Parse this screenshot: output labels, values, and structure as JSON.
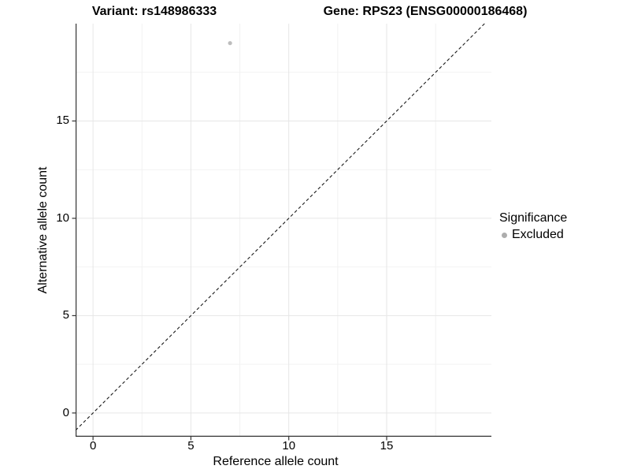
{
  "titles": {
    "variant": "Variant: rs148986333",
    "gene": "Gene: RPS23 (ENSG00000186468)"
  },
  "axes": {
    "x": {
      "label": "Reference allele count",
      "tick_labels": [
        "0",
        "5",
        "10",
        "15"
      ]
    },
    "y": {
      "label": "Alternative allele count",
      "tick_labels": [
        "0",
        "5",
        "10",
        "15"
      ]
    }
  },
  "legend": {
    "title": "Significance",
    "items": [
      {
        "label": "Excluded",
        "color": "#adadad"
      }
    ]
  },
  "chart_data": {
    "type": "scatter",
    "title_left": "Variant: rs148986333",
    "title_right": "Gene: RPS23 (ENSG00000186468)",
    "xlabel": "Reference allele count",
    "ylabel": "Alternative allele count",
    "x_ticks": [
      0,
      5,
      10,
      15
    ],
    "y_ticks": [
      0,
      5,
      10,
      15
    ],
    "x_minor_ticks": [
      2.5,
      7.5,
      12.5,
      17.5
    ],
    "y_minor_ticks": [
      2.5,
      7.5,
      12.5,
      17.5
    ],
    "xlim": [
      -0.89,
      20.35
    ],
    "ylim": [
      -1.22,
      20.0
    ],
    "grid": "major+minor",
    "legend_position": "right",
    "series": [
      {
        "name": "Excluded",
        "color": "#bdbdbd",
        "points": [
          {
            "x": 7,
            "y": 19
          }
        ],
        "point_radius": 2.6
      }
    ],
    "reference_line": {
      "kind": "identity",
      "equation": "y = x",
      "style": "dashed",
      "color": "#1a1a1a"
    }
  },
  "colors": {
    "background": "#ffffff",
    "grid_major": "#e6e6e6",
    "grid_minor": "#f2f2f2",
    "axis_line": "#333333",
    "text": "#000000"
  }
}
